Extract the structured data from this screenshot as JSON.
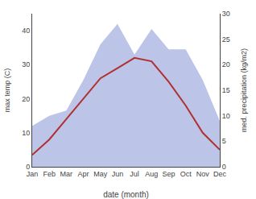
{
  "chart_data": {
    "type": "line",
    "xlabel": "date (month)",
    "ylabel": "max temp (C)",
    "y2label": "med. precipitation (kg/m2)",
    "categories": [
      "Jan",
      "Feb",
      "Mar",
      "Apr",
      "May",
      "Jun",
      "Jul",
      "Aug",
      "Sep",
      "Oct",
      "Nov",
      "Dec"
    ],
    "series": [
      {
        "type": "area",
        "axis": "y2",
        "color": "#bcc5e8",
        "values": [
          8,
          10,
          11,
          17,
          24,
          28,
          22,
          27,
          23,
          23,
          17,
          9
        ]
      },
      {
        "type": "line",
        "color": "#b03030",
        "values": [
          3.5,
          8,
          14,
          20,
          26,
          29,
          32,
          31,
          25,
          18,
          10,
          5
        ]
      }
    ],
    "ylim": [
      0,
      45
    ],
    "yticks": [
      0,
      10,
      20,
      30,
      40
    ],
    "y2lim": [
      0,
      30
    ],
    "y2ticks": [
      0,
      5,
      10,
      15,
      20,
      25,
      30
    ],
    "grid": false
  }
}
